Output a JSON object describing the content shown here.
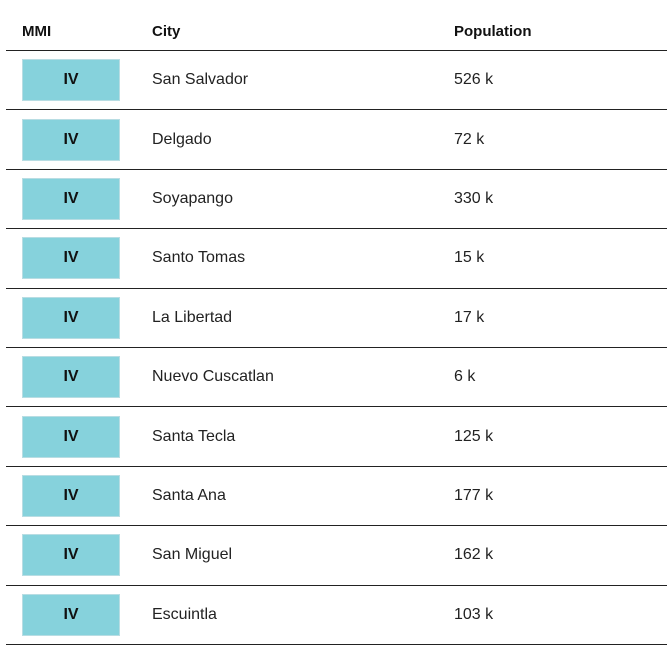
{
  "headers": {
    "mmi": "MMI",
    "city": "City",
    "population": "Population"
  },
  "mmi_color": "#86d2dc",
  "rows": [
    {
      "mmi": "IV",
      "city": "San Salvador",
      "population": "526 k"
    },
    {
      "mmi": "IV",
      "city": "Delgado",
      "population": "72 k"
    },
    {
      "mmi": "IV",
      "city": "Soyapango",
      "population": "330 k"
    },
    {
      "mmi": "IV",
      "city": "Santo Tomas",
      "population": "15 k"
    },
    {
      "mmi": "IV",
      "city": "La Libertad",
      "population": "17 k"
    },
    {
      "mmi": "IV",
      "city": "Nuevo Cuscatlan",
      "population": "6 k"
    },
    {
      "mmi": "IV",
      "city": "Santa Tecla",
      "population": "125 k"
    },
    {
      "mmi": "IV",
      "city": "Santa Ana",
      "population": "177 k"
    },
    {
      "mmi": "IV",
      "city": "San Miguel",
      "population": "162 k"
    },
    {
      "mmi": "IV",
      "city": "Escuintla",
      "population": "103 k"
    }
  ]
}
